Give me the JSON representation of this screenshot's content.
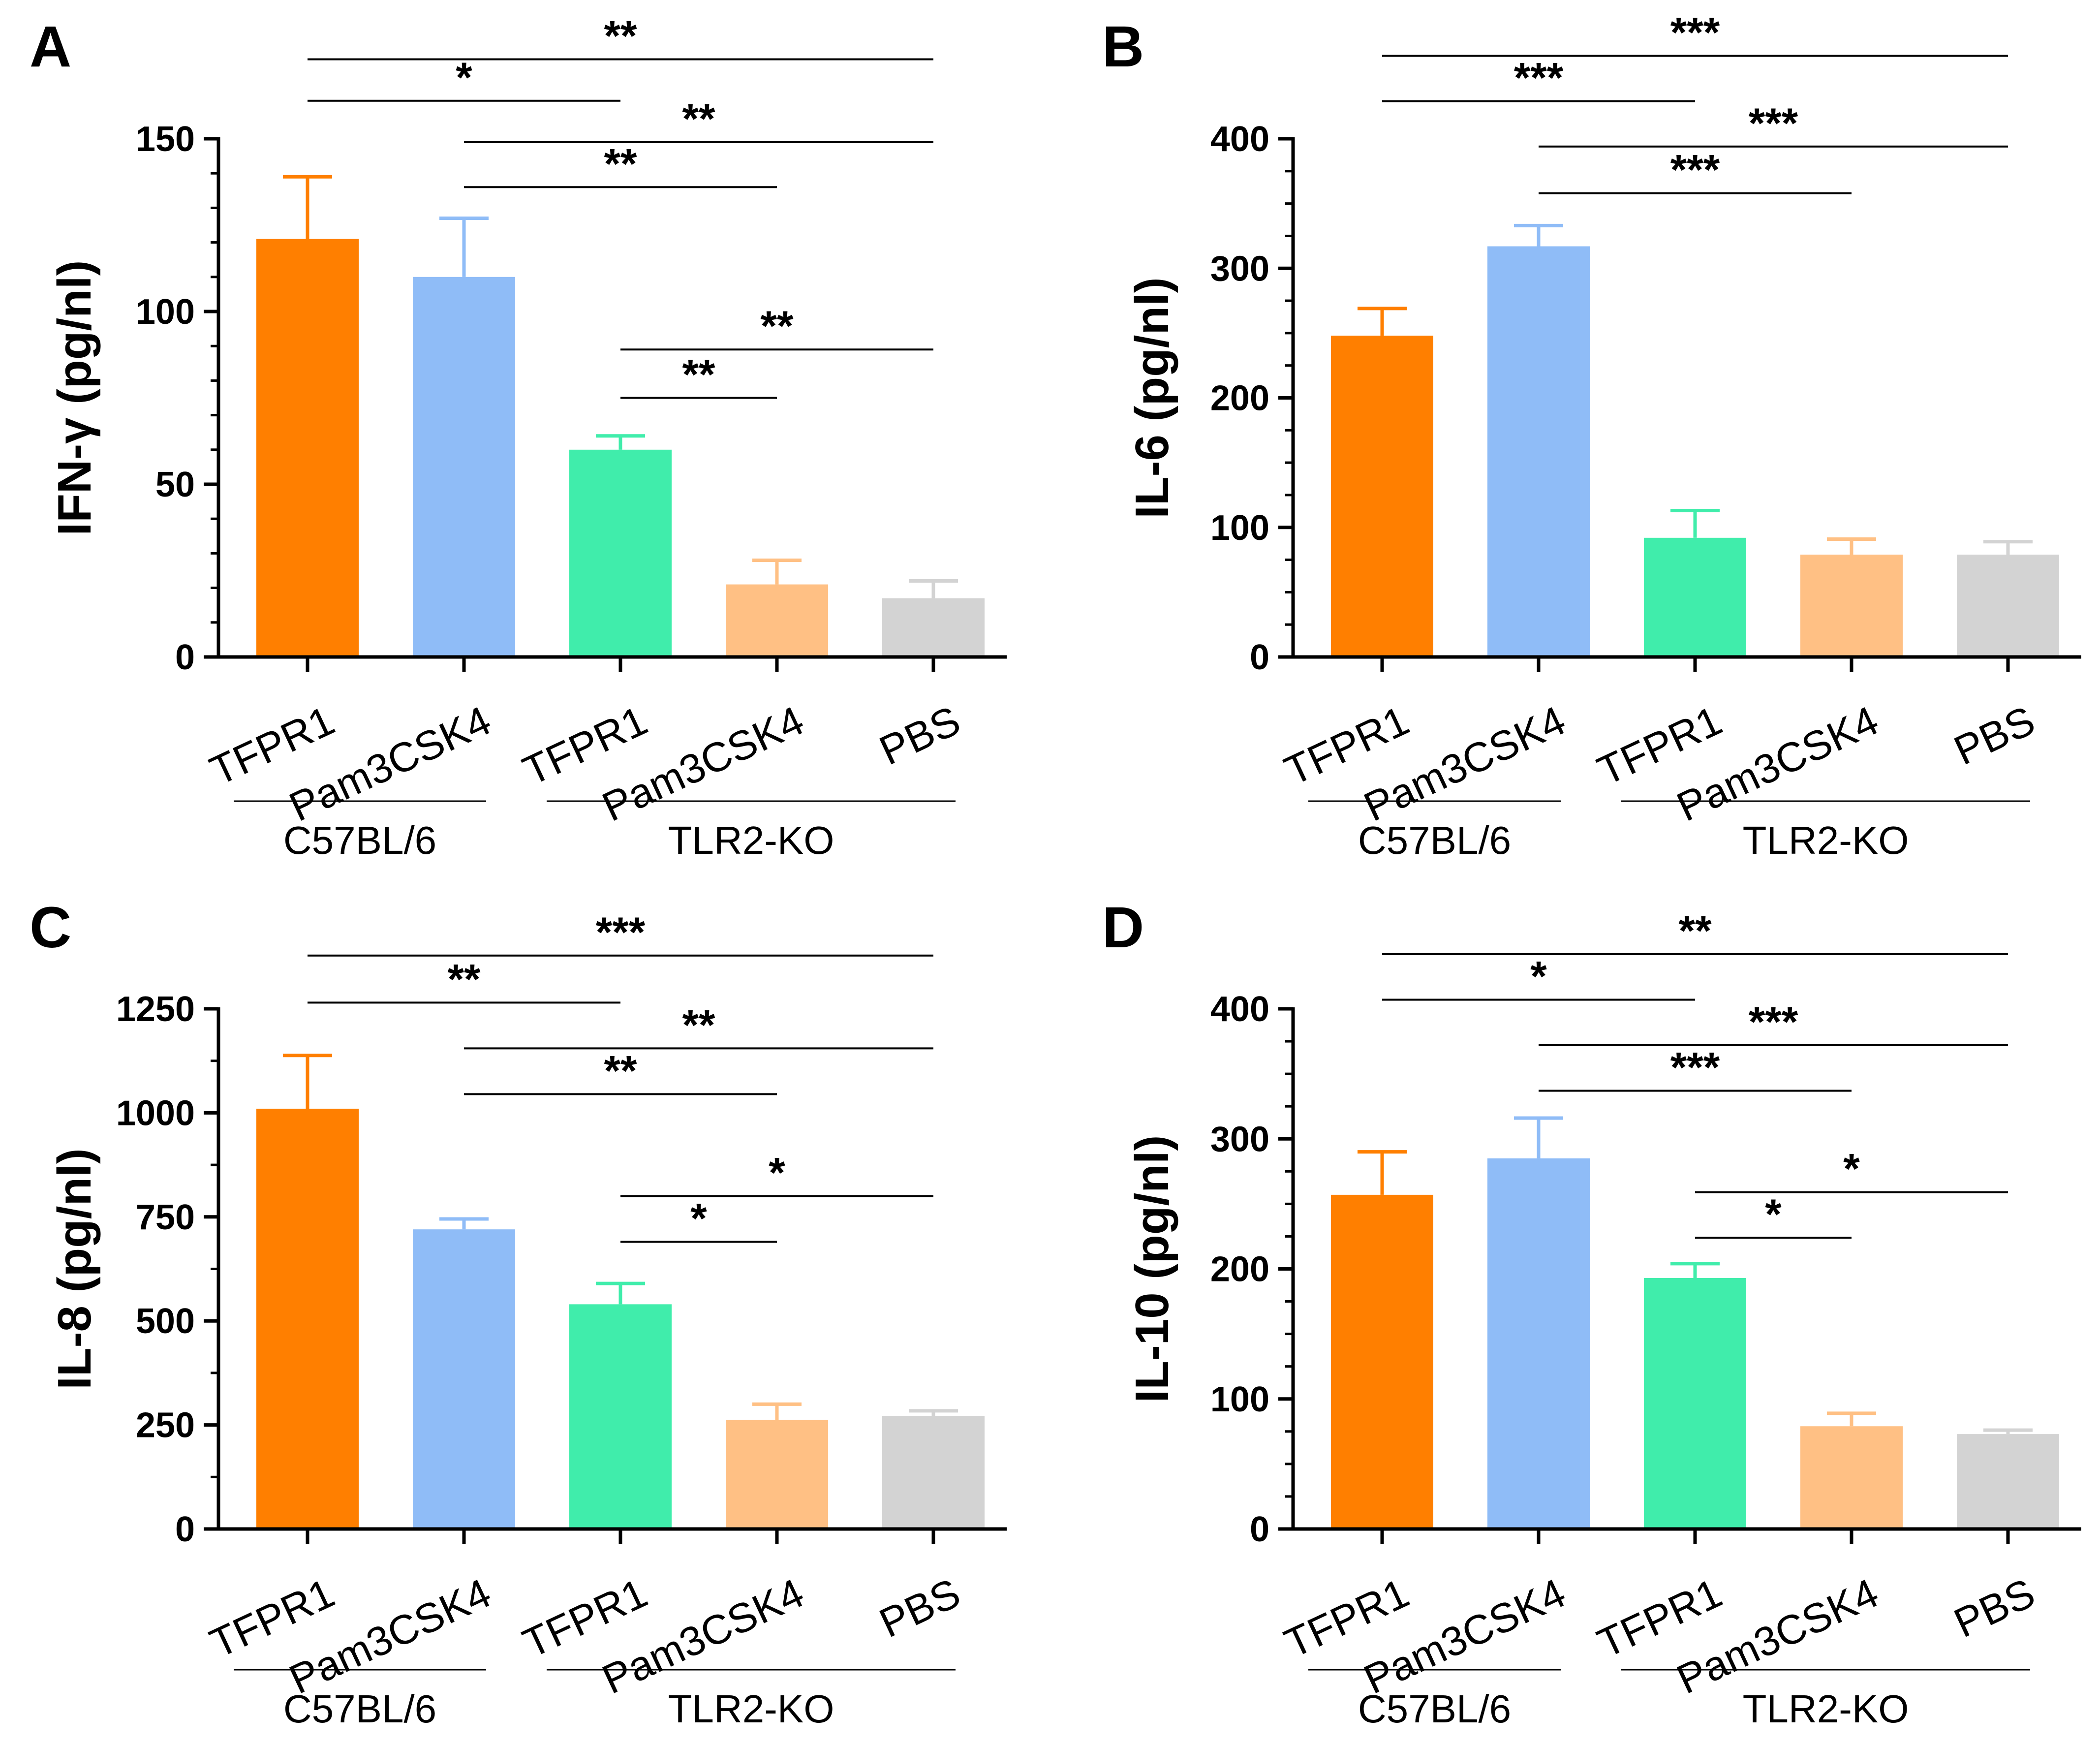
{
  "colors": {
    "TFPR1_wt": "#FF7F00",
    "Pam3CSK4_wt": "#8FBCF7",
    "TFPR1_ko": "#40EDAB",
    "Pam3CSK4_ko": "#FFC084",
    "PBS": "#D3D3D3",
    "axis": "#000000"
  },
  "chart_data": [
    {
      "type": "bar",
      "panel": "A",
      "ylabel": "IFN-γ (pg/nl)",
      "ylim": [
        0,
        150
      ],
      "yticks": [
        0,
        50,
        100,
        150
      ],
      "minor_step": 10,
      "categories": [
        "TFPR1",
        "Pam3CSK4",
        "TFPR1",
        "Pam3CSK4",
        "PBS"
      ],
      "groups": [
        {
          "label": "C57BL/6",
          "from": 0,
          "to": 1
        },
        {
          "label": "TLR2-KO",
          "from": 2,
          "to": 4
        }
      ],
      "values": [
        121,
        110,
        60,
        21,
        17
      ],
      "errors": [
        18,
        17,
        4,
        7,
        5
      ],
      "comparisons": [
        {
          "a": 0,
          "b": 4,
          "label": "**",
          "y": 173
        },
        {
          "a": 0,
          "b": 2,
          "label": "*",
          "y": 161
        },
        {
          "a": 1,
          "b": 4,
          "label": "**",
          "y": 149
        },
        {
          "a": 1,
          "b": 3,
          "label": "**",
          "y": 136
        },
        {
          "a": 2,
          "b": 4,
          "label": "**",
          "y": 89
        },
        {
          "a": 2,
          "b": 3,
          "label": "**",
          "y": 75
        }
      ]
    },
    {
      "type": "bar",
      "panel": "B",
      "ylabel": "IL-6 (pg/nl)",
      "ylim": [
        0,
        400
      ],
      "yticks": [
        0,
        100,
        200,
        300,
        400
      ],
      "minor_step": 25,
      "categories": [
        "TFPR1",
        "Pam3CSK4",
        "TFPR1",
        "Pam3CSK4",
        "PBS"
      ],
      "groups": [
        {
          "label": "C57BL/6",
          "from": 0,
          "to": 1
        },
        {
          "label": "TLR2-KO",
          "from": 2,
          "to": 4
        }
      ],
      "values": [
        248,
        317,
        92,
        79,
        79
      ],
      "errors": [
        21,
        16,
        21,
        12,
        10
      ],
      "comparisons": [
        {
          "a": 0,
          "b": 4,
          "label": "***",
          "y": 464
        },
        {
          "a": 0,
          "b": 2,
          "label": "***",
          "y": 429
        },
        {
          "a": 1,
          "b": 4,
          "label": "***",
          "y": 394
        },
        {
          "a": 1,
          "b": 3,
          "label": "***",
          "y": 358
        }
      ]
    },
    {
      "type": "bar",
      "panel": "C",
      "ylabel": "IL-8 (pg/nl)",
      "ylim": [
        0,
        1250
      ],
      "yticks": [
        0,
        250,
        500,
        750,
        1000,
        1250
      ],
      "minor_step": 125,
      "categories": [
        "TFPR1",
        "Pam3CSK4",
        "TFPR1",
        "Pam3CSK4",
        "PBS"
      ],
      "groups": [
        {
          "label": "C57BL/6",
          "from": 0,
          "to": 1
        },
        {
          "label": "TLR2-KO",
          "from": 2,
          "to": 4
        }
      ],
      "values": [
        1010,
        720,
        540,
        262,
        272
      ],
      "errors": [
        128,
        25,
        50,
        38,
        12
      ],
      "comparisons": [
        {
          "a": 0,
          "b": 4,
          "label": "***",
          "y": 1378
        },
        {
          "a": 0,
          "b": 2,
          "label": "**",
          "y": 1265
        },
        {
          "a": 1,
          "b": 4,
          "label": "**",
          "y": 1155
        },
        {
          "a": 1,
          "b": 3,
          "label": "**",
          "y": 1045
        },
        {
          "a": 2,
          "b": 4,
          "label": "*",
          "y": 800
        },
        {
          "a": 2,
          "b": 3,
          "label": "*",
          "y": 690
        }
      ]
    },
    {
      "type": "bar",
      "panel": "D",
      "ylabel": "IL-10 (pg/nl)",
      "ylim": [
        0,
        400
      ],
      "yticks": [
        0,
        100,
        200,
        300,
        400
      ],
      "minor_step": 25,
      "categories": [
        "TFPR1",
        "Pam3CSK4",
        "TFPR1",
        "Pam3CSK4",
        "PBS"
      ],
      "groups": [
        {
          "label": "C57BL/6",
          "from": 0,
          "to": 1
        },
        {
          "label": "TLR2-KO",
          "from": 2,
          "to": 4
        }
      ],
      "values": [
        257,
        285,
        193,
        79,
        73
      ],
      "errors": [
        33,
        31,
        11,
        10,
        3
      ],
      "comparisons": [
        {
          "a": 0,
          "b": 4,
          "label": "**",
          "y": 442
        },
        {
          "a": 0,
          "b": 2,
          "label": "*",
          "y": 407
        },
        {
          "a": 1,
          "b": 4,
          "label": "***",
          "y": 372
        },
        {
          "a": 1,
          "b": 3,
          "label": "***",
          "y": 337
        },
        {
          "a": 2,
          "b": 4,
          "label": "*",
          "y": 259
        },
        {
          "a": 2,
          "b": 3,
          "label": "*",
          "y": 224
        }
      ]
    }
  ]
}
